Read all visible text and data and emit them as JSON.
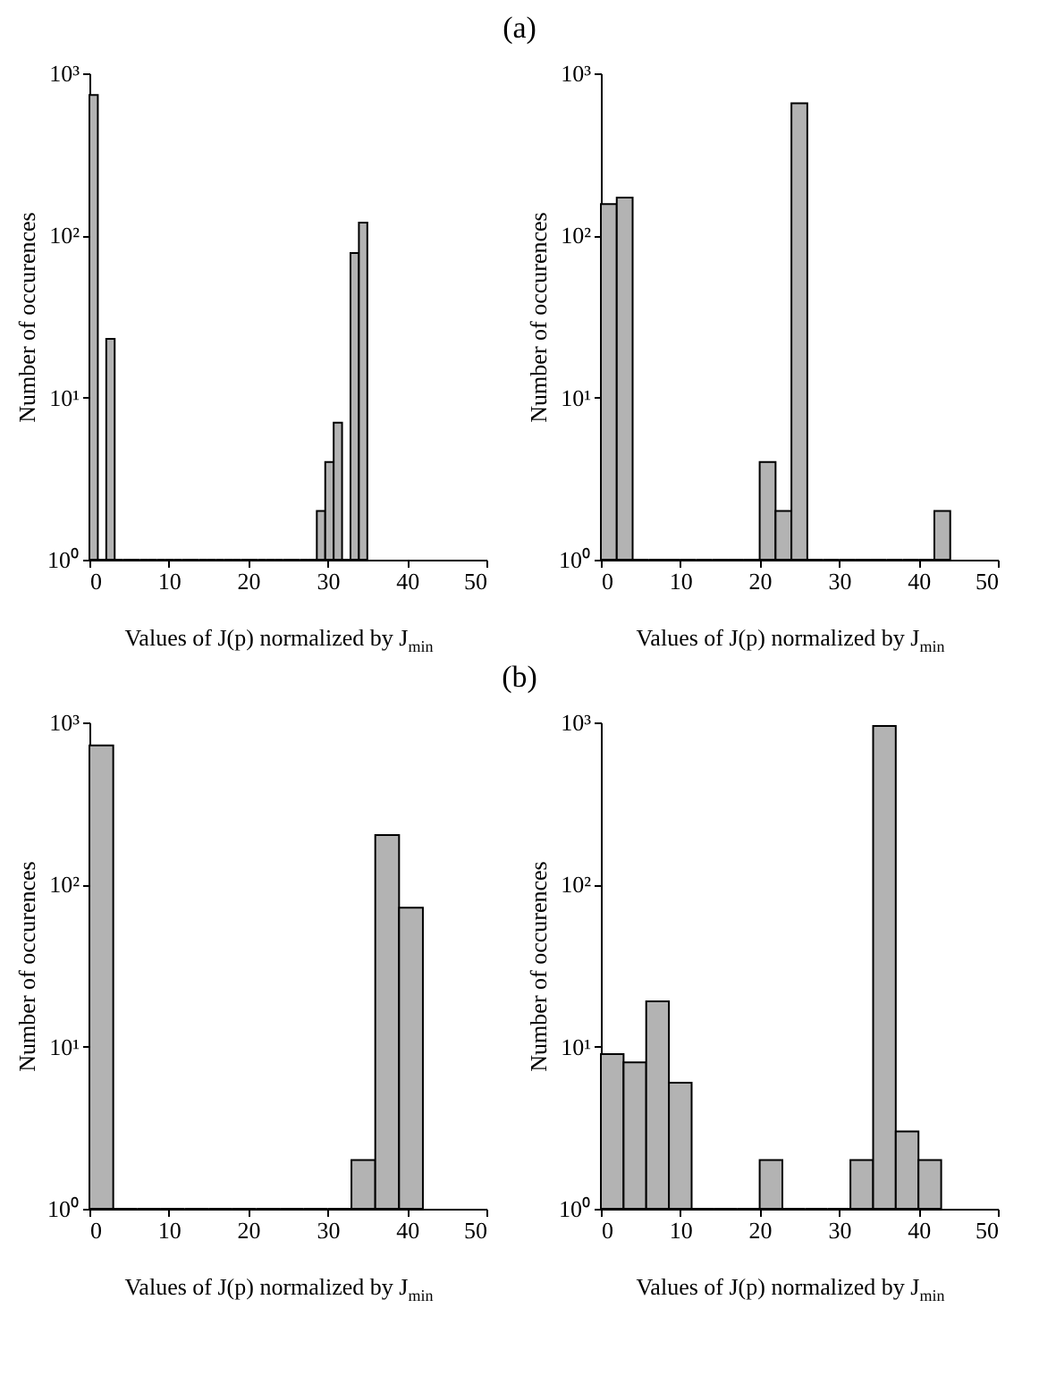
{
  "chart_data": [
    {
      "type": "histogram",
      "title": "(a)",
      "xlabel": "Values of J(p) normalized by J$_{min}$",
      "ylabel": "Number of occurences",
      "log": true,
      "color": "#b3b3b3",
      "bins": [
        0,
        1.06,
        2.12,
        3.18,
        4.24,
        5.3,
        6.36,
        7.42,
        8.48,
        9.55,
        10.61,
        11.67,
        12.73,
        13.79,
        14.85,
        15.91,
        16.97,
        18.03,
        19.09,
        20.15,
        21.21,
        22.27,
        23.33,
        24.39,
        25.45,
        26.52,
        27.58,
        28.64,
        29.7,
        30.76,
        31.82,
        32.88,
        33.94,
        35
      ],
      "values": [
        735,
        null,
        23,
        null,
        null,
        null,
        null,
        null,
        null,
        null,
        null,
        null,
        null,
        null,
        null,
        null,
        null,
        null,
        null,
        null,
        null,
        null,
        null,
        null,
        null,
        null,
        null,
        2,
        4,
        7,
        null,
        78,
        120
      ],
      "xlim": [
        0,
        50
      ],
      "xticks": [
        0,
        10,
        20,
        30,
        40,
        50
      ],
      "ylim": [
        1,
        1000
      ],
      "yticks": [
        {
          "value": 1,
          "label": "10⁰"
        },
        {
          "value": 10,
          "label": "10¹"
        },
        {
          "value": 100,
          "label": "10²"
        },
        {
          "value": 1000,
          "label": "10³"
        }
      ]
    },
    {
      "type": "histogram",
      "xlabel": "Values of J(p) normalized by J$_{min}$",
      "ylabel": "Number of occurences",
      "log": true,
      "color": "#b3b3b3",
      "bins": [
        0,
        2,
        4,
        6,
        8,
        10,
        12,
        14,
        16,
        18,
        20,
        22,
        24,
        26,
        28,
        30,
        32,
        34,
        36,
        38,
        40,
        42,
        44
      ],
      "values": [
        156,
        171,
        null,
        null,
        null,
        null,
        null,
        null,
        null,
        null,
        4,
        2,
        653,
        null,
        null,
        null,
        null,
        null,
        null,
        null,
        null,
        2
      ],
      "xlim": [
        0,
        50
      ],
      "xticks": [
        0,
        10,
        20,
        30,
        40,
        50
      ],
      "ylim": [
        1,
        1000
      ],
      "yticks": [
        {
          "value": 1,
          "label": "10⁰"
        },
        {
          "value": 10,
          "label": "10¹"
        },
        {
          "value": 100,
          "label": "10²"
        },
        {
          "value": 1000,
          "label": "10³"
        }
      ]
    },
    {
      "type": "histogram",
      "title": "(b)",
      "xlabel": "Values of J(p) normalized by J$_{min}$",
      "ylabel": "Number of occurences",
      "log": true,
      "color": "#b3b3b3",
      "bins": [
        0,
        3,
        6,
        9,
        12,
        15,
        18,
        21,
        24,
        27,
        30,
        33,
        36,
        39,
        42
      ],
      "values": [
        720,
        null,
        null,
        null,
        null,
        null,
        null,
        null,
        null,
        null,
        null,
        2,
        202,
        72
      ],
      "xlim": [
        0,
        50
      ],
      "xticks": [
        0,
        10,
        20,
        30,
        40,
        50
      ],
      "ylim": [
        1,
        1000
      ],
      "yticks": [
        {
          "value": 1,
          "label": "10⁰"
        },
        {
          "value": 10,
          "label": "10¹"
        },
        {
          "value": 100,
          "label": "10²"
        },
        {
          "value": 1000,
          "label": "10³"
        }
      ]
    },
    {
      "type": "histogram",
      "xlabel": "Values of J(p) normalized by J$_{min}$",
      "ylabel": "Number of occurences",
      "log": true,
      "color": "#b3b3b3",
      "bins": [
        0,
        2.86,
        5.71,
        8.57,
        11.43,
        14.29,
        17.14,
        20,
        22.86,
        25.71,
        28.57,
        31.43,
        34.29,
        37.14,
        40,
        42.86
      ],
      "values": [
        9,
        8,
        19,
        6,
        null,
        null,
        null,
        2,
        null,
        null,
        null,
        2,
        950,
        3,
        2
      ],
      "xlim": [
        0,
        50
      ],
      "xticks": [
        0,
        10,
        20,
        30,
        40,
        50
      ],
      "ylim": [
        1,
        1000
      ],
      "yticks": [
        {
          "value": 1,
          "label": "10⁰"
        },
        {
          "value": 10,
          "label": "10¹"
        },
        {
          "value": 100,
          "label": "10²"
        },
        {
          "value": 1000,
          "label": "10³"
        }
      ]
    }
  ]
}
